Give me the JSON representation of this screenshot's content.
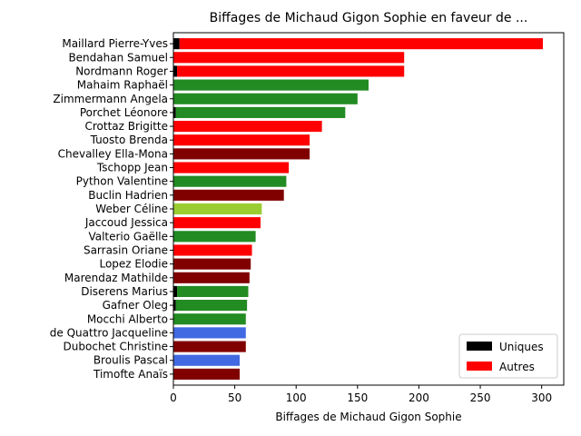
{
  "chart_data": {
    "type": "bar",
    "orientation": "horizontal",
    "title": "Biffages de Michaud Gigon Sophie en faveur de ...",
    "xlabel": "Biffages de Michaud Gigon Sophie",
    "ylabel": "",
    "xlim": [
      0,
      318
    ],
    "xticks": [
      0,
      50,
      100,
      150,
      200,
      250,
      300
    ],
    "grid": false,
    "legend_position": "lower-right",
    "legend": [
      {
        "label": "Uniques",
        "color": "#000000"
      },
      {
        "label": "Autres",
        "color": "#ff0000"
      }
    ],
    "categories": [
      "Maillard Pierre-Yves",
      "Bendahan Samuel",
      "Nordmann Roger",
      "Mahaim Raphaël",
      "Zimmermann Angela",
      "Porchet Léonore",
      "Crottaz Brigitte",
      "Tuosto Brenda",
      "Chevalley Ella-Mona",
      "Tschopp Jean",
      "Python Valentine",
      "Buclin Hadrien",
      "Weber Céline",
      "Jaccoud Jessica",
      "Valterio Gaëlle",
      "Sarrasin Oriane",
      "Lopez Elodie",
      "Marendaz Mathilde",
      "Diserens Marius",
      "Gafner Oleg",
      "Mocchi Alberto",
      "de Quattro Jacqueline",
      "Dubochet Christine",
      "Broulis Pascal",
      "Timofte Anaïs"
    ],
    "series": [
      {
        "name": "Uniques",
        "values": [
          5,
          0,
          3,
          0,
          0,
          2,
          0,
          0,
          0,
          0,
          0,
          0,
          0,
          0,
          0,
          0,
          0,
          0,
          3,
          2,
          0,
          0,
          0,
          0,
          0
        ]
      },
      {
        "name": "Autres",
        "values": [
          296,
          188,
          185,
          159,
          150,
          138,
          121,
          111,
          111,
          94,
          92,
          90,
          72,
          71,
          67,
          64,
          63,
          62,
          58,
          58,
          59,
          59,
          59,
          54,
          54
        ]
      }
    ],
    "bar_colors": [
      "#ff0000",
      "#ff0000",
      "#ff0000",
      "#228b22",
      "#228b22",
      "#228b22",
      "#ff0000",
      "#ff0000",
      "#800000",
      "#ff0000",
      "#228b22",
      "#800000",
      "#9acd32",
      "#ff0000",
      "#228b22",
      "#ff0000",
      "#800000",
      "#800000",
      "#228b22",
      "#228b22",
      "#228b22",
      "#4169e1",
      "#800000",
      "#4169e1",
      "#800000"
    ],
    "unique_color": "#000000"
  }
}
